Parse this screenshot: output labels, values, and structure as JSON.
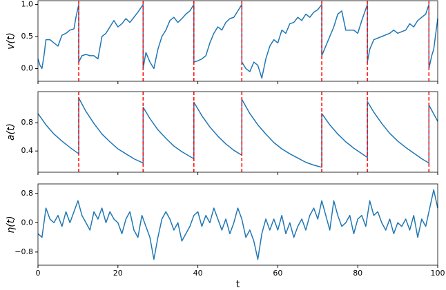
{
  "chart_data": [
    {
      "type": "line",
      "ylabel": "v(t)",
      "color": "#1f77b4",
      "xlim": [
        0,
        100
      ],
      "ylim": [
        -0.2,
        1.06
      ],
      "yticks": [
        {
          "value": 0,
          "label": "0.0"
        },
        0.5,
        {
          "value": 1,
          "label": "1.0"
        }
      ],
      "vlines": [
        10.2,
        26.3,
        39.0,
        51.0,
        71.0,
        82.4,
        97.8
      ],
      "vline_color": "#ff0000",
      "x": [
        0,
        0.5,
        1,
        1.5,
        2,
        3,
        4,
        5,
        6,
        7,
        8,
        9,
        9.5,
        10.2,
        10.2,
        11,
        12,
        13,
        14,
        15,
        16,
        17,
        18,
        19,
        20,
        21,
        22,
        23,
        24,
        25,
        26.3,
        26.3,
        27,
        28,
        29,
        30,
        31,
        32,
        33,
        34,
        35,
        36,
        37,
        38,
        39,
        39,
        40,
        41,
        42,
        43,
        44,
        45,
        46,
        47,
        48,
        49,
        50,
        51,
        51,
        52,
        53,
        54,
        55,
        56,
        57,
        58,
        59,
        60,
        61,
        62,
        63,
        64,
        65,
        66,
        67,
        68,
        69,
        70,
        71,
        71,
        72,
        73,
        74,
        75,
        76,
        77,
        79,
        80,
        81,
        82.4,
        82.4,
        83,
        84,
        86,
        88,
        89,
        90,
        92,
        93,
        94,
        95,
        96,
        97,
        97.8,
        97.8,
        98.5,
        99,
        100
      ],
      "values": [
        0.15,
        0.05,
        0.0,
        0.2,
        0.45,
        0.45,
        0.4,
        0.35,
        0.52,
        0.55,
        0.6,
        0.62,
        0.8,
        1.0,
        0.1,
        0.2,
        0.22,
        0.2,
        0.2,
        0.15,
        0.5,
        0.55,
        0.65,
        0.75,
        0.65,
        0.7,
        0.78,
        0.72,
        0.8,
        0.88,
        1.0,
        0.0,
        0.25,
        0.1,
        0.0,
        0.3,
        0.5,
        0.6,
        0.75,
        0.8,
        0.72,
        0.78,
        0.85,
        0.9,
        1.0,
        0.1,
        0.12,
        0.15,
        0.2,
        0.4,
        0.55,
        0.65,
        0.6,
        0.72,
        0.78,
        0.8,
        0.9,
        1.0,
        0.1,
        0.0,
        -0.05,
        0.1,
        0.05,
        -0.15,
        0.15,
        0.35,
        0.45,
        0.4,
        0.6,
        0.55,
        0.7,
        0.72,
        0.8,
        0.75,
        0.85,
        0.8,
        0.88,
        0.92,
        1.0,
        0.2,
        0.35,
        0.5,
        0.65,
        0.85,
        0.9,
        0.6,
        0.6,
        0.55,
        0.75,
        1.0,
        0.1,
        0.3,
        0.45,
        0.5,
        0.55,
        0.6,
        0.55,
        0.6,
        0.7,
        0.65,
        0.75,
        0.8,
        0.85,
        1.0,
        0.0,
        0.2,
        0.3,
        0.78
      ]
    },
    {
      "type": "line",
      "ylabel": "a(t)",
      "color": "#1f77b4",
      "xlim": [
        0,
        100
      ],
      "ylim": [
        0.1,
        1.24
      ],
      "yticks": [
        0.4,
        0.8
      ],
      "vlines": [
        10.2,
        26.3,
        39.0,
        51.0,
        71.0,
        82.4,
        97.8
      ],
      "vline_color": "#ff0000",
      "x": [
        0,
        2,
        4,
        6,
        8,
        10.2,
        10.2,
        12,
        14,
        16,
        18,
        20,
        22,
        24,
        26.3,
        26.3,
        28,
        30,
        32,
        34,
        36,
        39,
        39,
        41,
        43,
        45,
        47,
        49,
        51,
        51,
        53,
        55,
        57,
        59,
        61,
        63,
        65,
        67,
        69,
        71,
        71,
        73,
        75,
        77,
        79,
        82.4,
        82.4,
        84,
        86,
        88,
        90,
        92,
        94,
        96,
        97.8,
        97.8,
        100
      ],
      "values": [
        0.93,
        0.77,
        0.64,
        0.54,
        0.45,
        0.36,
        1.15,
        0.96,
        0.79,
        0.64,
        0.53,
        0.43,
        0.36,
        0.29,
        0.23,
        1.02,
        0.86,
        0.7,
        0.58,
        0.47,
        0.39,
        0.29,
        1.09,
        0.9,
        0.74,
        0.61,
        0.5,
        0.41,
        0.34,
        1.13,
        0.93,
        0.77,
        0.64,
        0.52,
        0.43,
        0.36,
        0.3,
        0.24,
        0.2,
        0.17,
        0.93,
        0.77,
        0.64,
        0.53,
        0.44,
        0.31,
        1.1,
        0.95,
        0.79,
        0.65,
        0.54,
        0.45,
        0.37,
        0.29,
        0.23,
        1.05,
        0.82
      ]
    },
    {
      "type": "line",
      "ylabel": "η(t)",
      "xlabel": "t",
      "color": "#1f77b4",
      "xlim": [
        0,
        100
      ],
      "xticks": [
        0,
        20,
        40,
        60,
        80,
        100
      ],
      "ylim": [
        -1.16,
        1.06
      ],
      "yticks": [
        {
          "value": -0.8,
          "label": "−0.8"
        },
        {
          "value": 0,
          "label": "0.0"
        },
        0.8
      ],
      "x": [
        0,
        1,
        2,
        3,
        4,
        5,
        6,
        7,
        8,
        9,
        10,
        11,
        12,
        13,
        14,
        15,
        16,
        17,
        18,
        19,
        20,
        21,
        22,
        23,
        24,
        25,
        26,
        27,
        28,
        29,
        30,
        31,
        32,
        33,
        34,
        35,
        36,
        37,
        38,
        39,
        40,
        41,
        42,
        43,
        44,
        45,
        46,
        47,
        48,
        49,
        50,
        51,
        52,
        53,
        54,
        55,
        56,
        57,
        58,
        59,
        60,
        61,
        62,
        63,
        64,
        65,
        66,
        67,
        68,
        69,
        70,
        71,
        72,
        73,
        74,
        75,
        76,
        77,
        78,
        79,
        80,
        81,
        82,
        83,
        84,
        85,
        86,
        87,
        88,
        89,
        90,
        91,
        92,
        93,
        94,
        95,
        96,
        97,
        98,
        99,
        100
      ],
      "values": [
        -0.3,
        -0.4,
        0.4,
        0.1,
        0.0,
        0.2,
        -0.1,
        0.3,
        0.0,
        0.3,
        0.6,
        0.2,
        0.0,
        -0.2,
        0.3,
        0.1,
        0.4,
        0.0,
        0.3,
        0.1,
        0.0,
        -0.3,
        0.1,
        0.3,
        -0.2,
        -0.4,
        0.2,
        -0.1,
        -0.4,
        -1.0,
        -0.4,
        0.1,
        0.3,
        0.1,
        -0.2,
        0.0,
        -0.5,
        -0.3,
        -0.1,
        0.2,
        0.3,
        -0.1,
        0.2,
        0.0,
        0.4,
        0.1,
        -0.2,
        0.1,
        -0.3,
        0.0,
        0.4,
        0.1,
        -0.4,
        -0.2,
        -0.5,
        -1.0,
        -0.3,
        0.1,
        -0.2,
        0.1,
        -0.2,
        0.2,
        -0.3,
        0.0,
        -0.4,
        -0.1,
        0.1,
        -0.2,
        0.2,
        0.4,
        0.1,
        0.6,
        0.2,
        -0.2,
        0.6,
        0.2,
        -0.1,
        0.0,
        0.2,
        -0.3,
        0.1,
        0.2,
        -0.1,
        0.6,
        0.2,
        0.3,
        0.0,
        -0.2,
        0.1,
        -0.3,
        0.0,
        -0.1,
        0.1,
        -0.2,
        0.2,
        -0.4,
        0.1,
        -0.1,
        0.4,
        0.9,
        0.4
      ]
    }
  ]
}
